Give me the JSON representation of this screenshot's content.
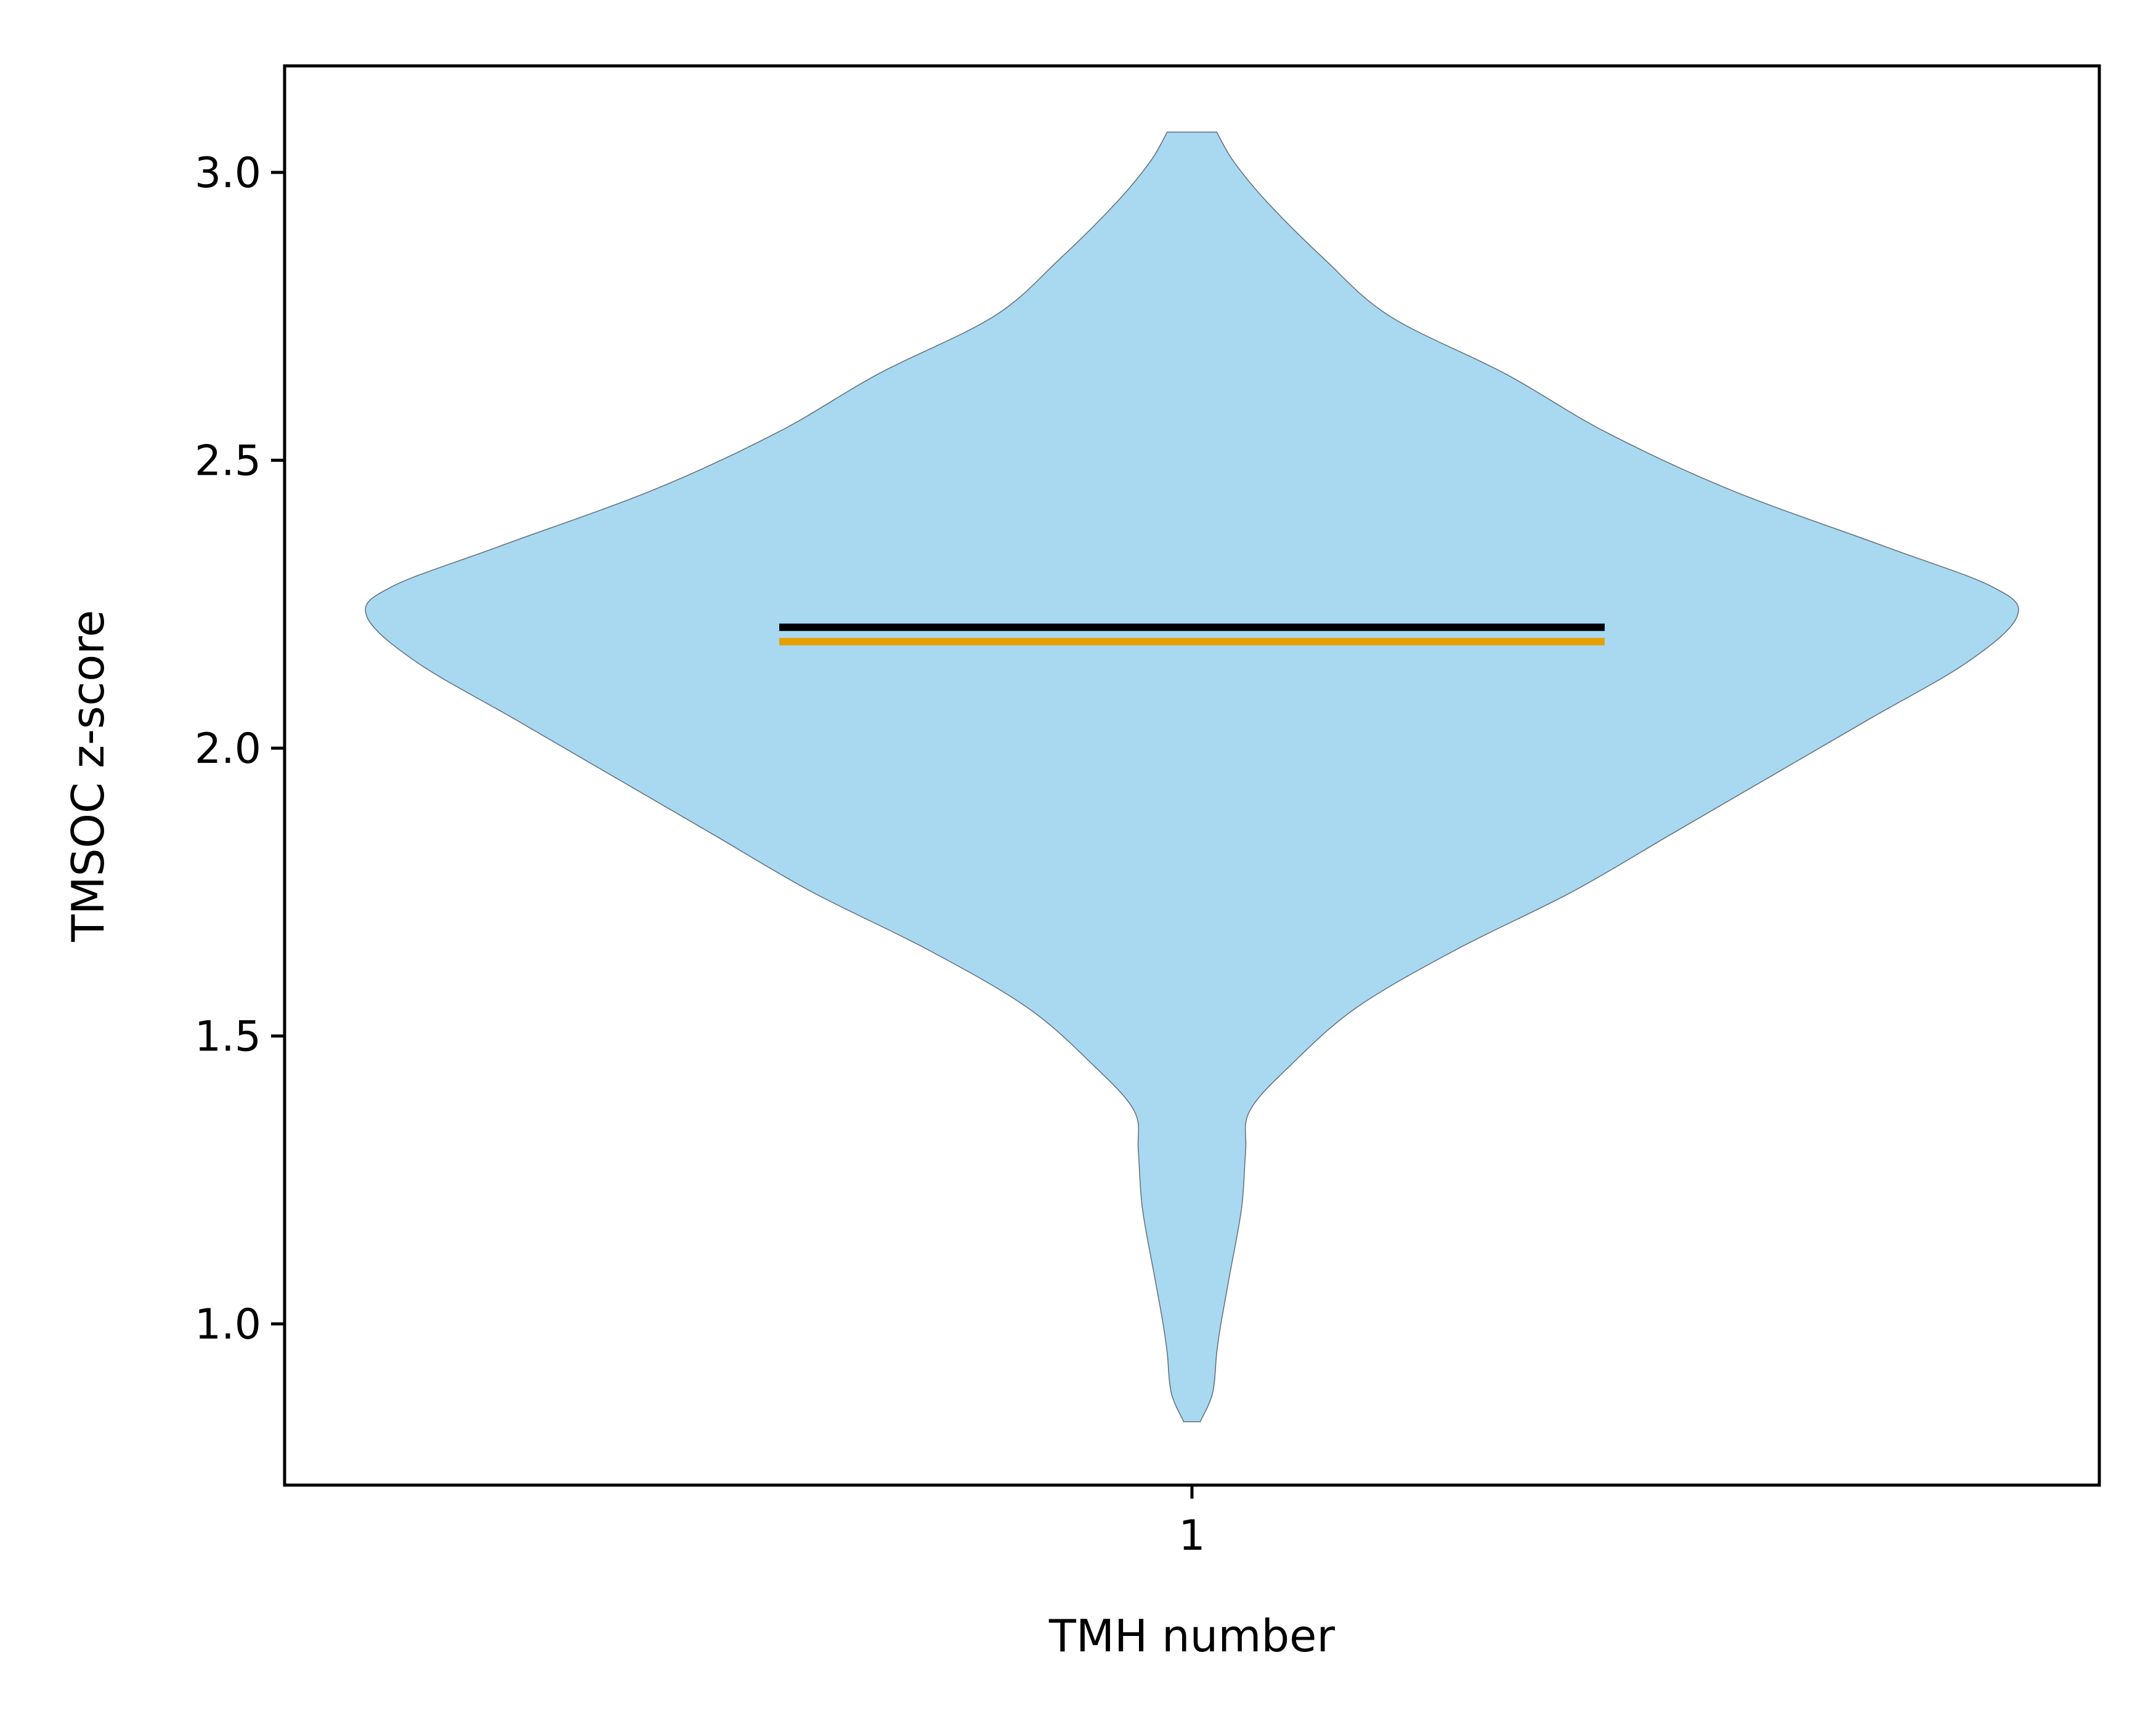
{
  "chart_data": {
    "type": "violin",
    "title": "",
    "xlabel": "TMH number",
    "ylabel": "TMSOC z-score",
    "categories": [
      "1"
    ],
    "ylim": [
      0.72,
      3.185
    ],
    "y_ticks": [
      1.0,
      1.5,
      2.0,
      2.5,
      3.0
    ],
    "y_tick_labels": [
      "1.0",
      "1.5",
      "2.0",
      "2.5",
      "3.0"
    ],
    "x_tick_labels": [
      "1"
    ],
    "grid": false,
    "legend": "none",
    "violins": [
      {
        "category": "1",
        "min": 0.83,
        "max": 3.07,
        "mean": 2.21,
        "median": 2.185,
        "density_profile": [
          [
            0.83,
            0.01
          ],
          [
            0.88,
            0.025
          ],
          [
            0.95,
            0.03
          ],
          [
            1.0,
            0.035
          ],
          [
            1.08,
            0.045
          ],
          [
            1.2,
            0.06
          ],
          [
            1.3,
            0.065
          ],
          [
            1.37,
            0.07
          ],
          [
            1.45,
            0.12
          ],
          [
            1.55,
            0.2
          ],
          [
            1.65,
            0.32
          ],
          [
            1.75,
            0.46
          ],
          [
            1.85,
            0.58
          ],
          [
            1.95,
            0.7
          ],
          [
            2.05,
            0.82
          ],
          [
            2.15,
            0.94
          ],
          [
            2.23,
            1.0
          ],
          [
            2.28,
            0.97
          ],
          [
            2.35,
            0.84
          ],
          [
            2.45,
            0.65
          ],
          [
            2.55,
            0.5
          ],
          [
            2.65,
            0.38
          ],
          [
            2.75,
            0.24
          ],
          [
            2.85,
            0.16
          ],
          [
            2.95,
            0.09
          ],
          [
            3.02,
            0.05
          ],
          [
            3.07,
            0.03
          ]
        ]
      }
    ],
    "colors": {
      "violin_fill": "#a9d8f1",
      "violin_edge": "#5f6f78",
      "mean_line": "#000000",
      "median_line": "#e69f00",
      "axes": "#000000"
    }
  }
}
